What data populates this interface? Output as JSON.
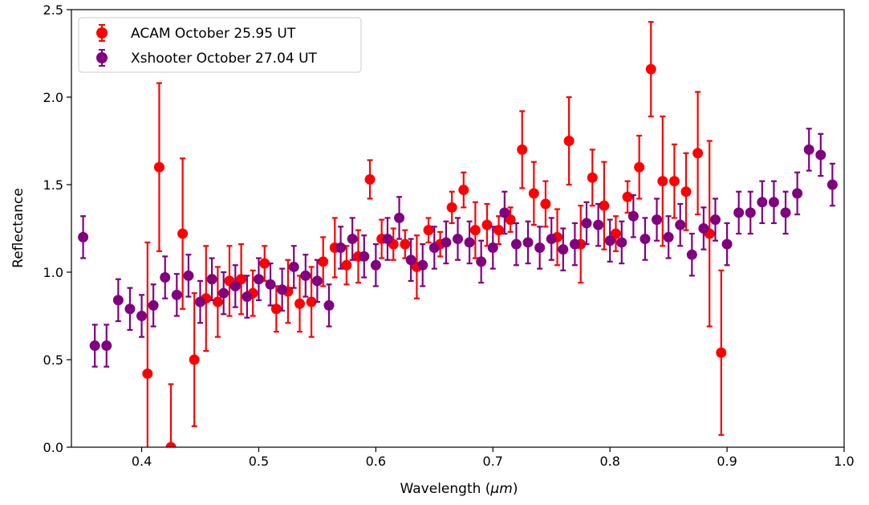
{
  "chart_data": {
    "type": "scatter",
    "title": "",
    "xlabel": "Wavelength (",
    "xlabel_unit": "μm",
    "xlabel_close": ")",
    "ylabel": "Reflectance",
    "xlim": [
      0.34,
      1.0
    ],
    "ylim": [
      0.0,
      2.5
    ],
    "xticks": [
      0.4,
      0.5,
      0.6,
      0.7,
      0.8,
      0.9,
      1.0
    ],
    "xtick_labels": [
      "0.4",
      "0.5",
      "0.6",
      "0.7",
      "0.8",
      "0.9",
      "1.0"
    ],
    "yticks": [
      0.0,
      0.5,
      1.0,
      1.5,
      2.0,
      2.5
    ],
    "ytick_labels": [
      "0.0",
      "0.5",
      "1.0",
      "1.5",
      "2.0",
      "2.5"
    ],
    "grid": false,
    "legend_position": "top-left",
    "series": [
      {
        "name": "ACAM October 25.95 UT",
        "color": "#ff0000",
        "x": [
          0.405,
          0.415,
          0.425,
          0.435,
          0.445,
          0.455,
          0.465,
          0.475,
          0.485,
          0.495,
          0.505,
          0.515,
          0.525,
          0.535,
          0.545,
          0.555,
          0.565,
          0.575,
          0.585,
          0.595,
          0.605,
          0.615,
          0.625,
          0.635,
          0.645,
          0.655,
          0.665,
          0.675,
          0.685,
          0.695,
          0.705,
          0.715,
          0.725,
          0.735,
          0.745,
          0.755,
          0.765,
          0.775,
          0.785,
          0.795,
          0.805,
          0.815,
          0.825,
          0.835,
          0.845,
          0.855,
          0.865,
          0.875,
          0.885,
          0.895
        ],
        "y": [
          0.42,
          1.6,
          0.0,
          1.22,
          0.5,
          0.85,
          0.83,
          0.95,
          0.96,
          0.88,
          1.05,
          0.79,
          0.89,
          0.82,
          0.83,
          1.06,
          1.14,
          1.04,
          1.09,
          1.53,
          1.19,
          1.16,
          1.16,
          1.03,
          1.24,
          1.16,
          1.37,
          1.47,
          1.24,
          1.27,
          1.24,
          1.3,
          1.7,
          1.45,
          1.39,
          1.2,
          1.75,
          1.16,
          1.54,
          1.38,
          1.22,
          1.43,
          1.6,
          2.16,
          1.52,
          1.52,
          1.46,
          1.68,
          1.22,
          0.54
        ],
        "yerr": [
          0.75,
          0.48,
          0.36,
          0.43,
          0.38,
          0.3,
          0.2,
          0.2,
          0.2,
          0.13,
          0.1,
          0.13,
          0.18,
          0.16,
          0.2,
          0.14,
          0.17,
          0.11,
          0.15,
          0.11,
          0.11,
          0.09,
          0.08,
          0.18,
          0.07,
          0.07,
          0.09,
          0.1,
          0.16,
          0.12,
          0.08,
          0.07,
          0.22,
          0.18,
          0.13,
          0.16,
          0.25,
          0.22,
          0.16,
          0.25,
          0.1,
          0.09,
          0.18,
          0.27,
          0.37,
          0.21,
          0.22,
          0.35,
          0.53,
          0.47
        ]
      },
      {
        "name": "Xshooter October 27.04 UT",
        "color": "#800080",
        "x": [
          0.35,
          0.36,
          0.37,
          0.38,
          0.39,
          0.4,
          0.41,
          0.42,
          0.43,
          0.44,
          0.45,
          0.46,
          0.47,
          0.48,
          0.49,
          0.5,
          0.51,
          0.52,
          0.53,
          0.54,
          0.55,
          0.56,
          0.57,
          0.58,
          0.59,
          0.6,
          0.61,
          0.62,
          0.63,
          0.64,
          0.65,
          0.66,
          0.67,
          0.68,
          0.69,
          0.7,
          0.71,
          0.72,
          0.73,
          0.74,
          0.75,
          0.76,
          0.77,
          0.78,
          0.79,
          0.8,
          0.81,
          0.82,
          0.83,
          0.84,
          0.85,
          0.86,
          0.87,
          0.88,
          0.89,
          0.9,
          0.91,
          0.92,
          0.93,
          0.94,
          0.95,
          0.96,
          0.97,
          0.98,
          0.99
        ],
        "y": [
          1.2,
          0.58,
          0.58,
          0.84,
          0.79,
          0.75,
          0.81,
          0.97,
          0.87,
          0.98,
          0.83,
          0.96,
          0.88,
          0.92,
          0.86,
          0.96,
          0.93,
          0.9,
          1.03,
          0.98,
          0.95,
          0.81,
          1.14,
          1.19,
          1.09,
          1.04,
          1.19,
          1.31,
          1.07,
          1.04,
          1.14,
          1.17,
          1.19,
          1.17,
          1.06,
          1.14,
          1.34,
          1.16,
          1.17,
          1.14,
          1.19,
          1.13,
          1.16,
          1.28,
          1.27,
          1.18,
          1.17,
          1.32,
          1.19,
          1.3,
          1.2,
          1.27,
          1.1,
          1.25,
          1.3,
          1.16,
          1.34,
          1.34,
          1.4,
          1.4,
          1.34,
          1.45,
          1.7,
          1.67,
          1.5
        ]
      }
    ]
  },
  "colors": {
    "acam": "#ff0000",
    "xshooter": "#800080"
  }
}
